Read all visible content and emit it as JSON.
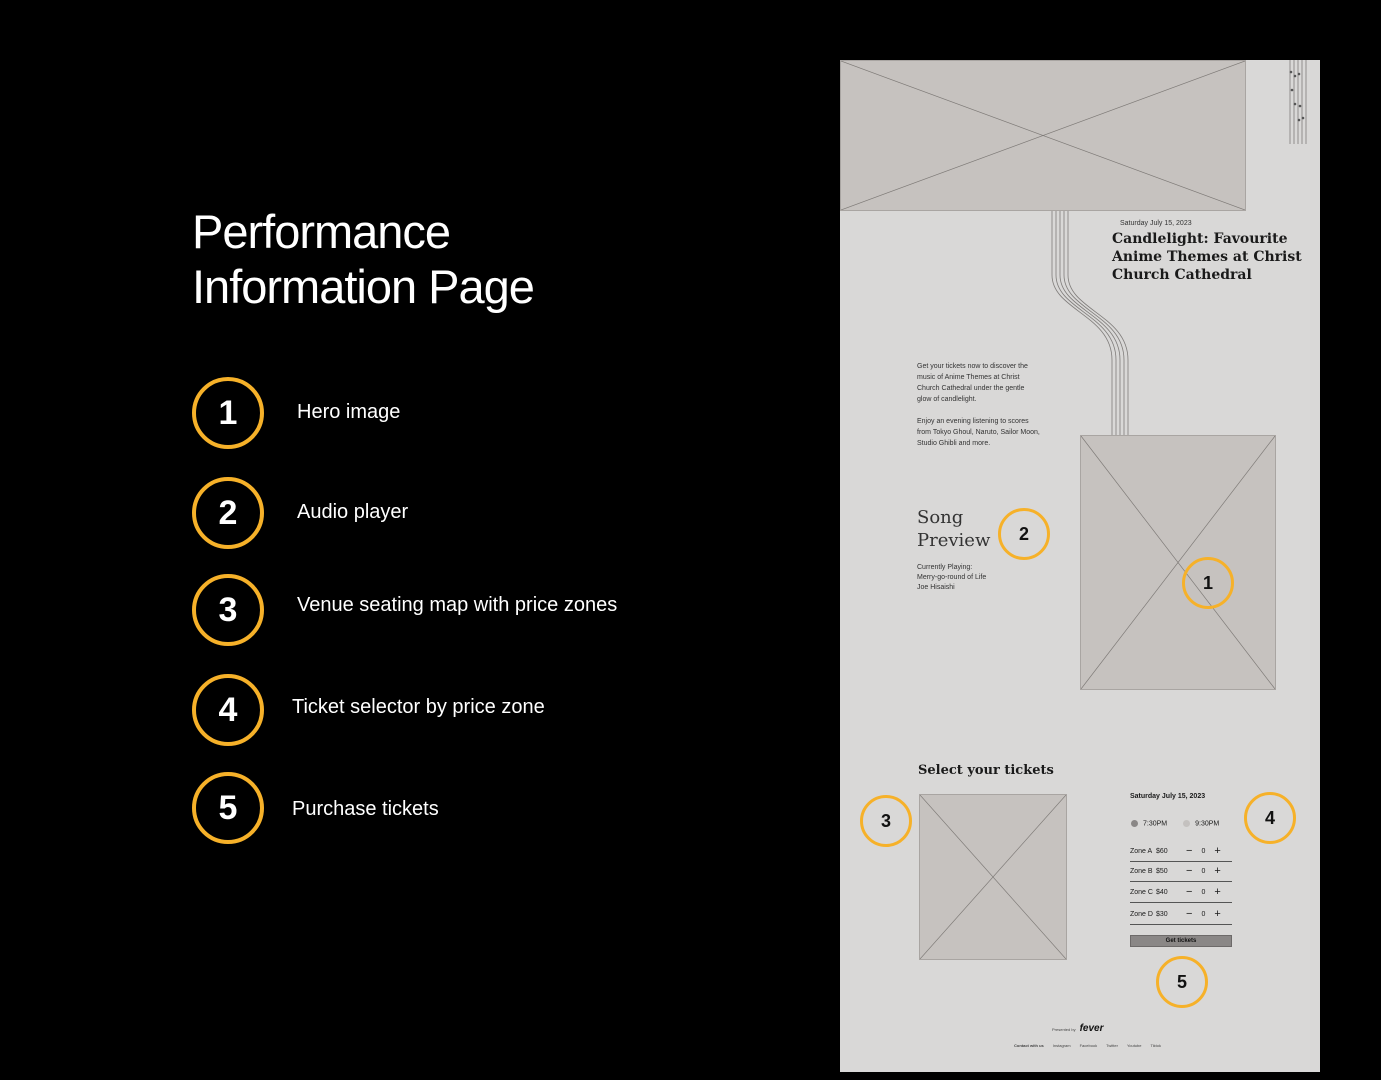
{
  "page": {
    "title_line1": "Performance",
    "title_line2": "Information Page"
  },
  "legend": [
    {
      "num": "1",
      "label": "Hero image"
    },
    {
      "num": "2",
      "label": "Audio player"
    },
    {
      "num": "3",
      "label": "Venue seating map with price zones"
    },
    {
      "num": "4",
      "label": "Ticket selector by price zone"
    },
    {
      "num": "5",
      "label": "Purchase tickets"
    }
  ],
  "colors": {
    "accent": "#f6b129",
    "background": "#000000",
    "wireframe_bg": "#d9d8d7",
    "placeholder": "#c6c2bf"
  },
  "event": {
    "date": "Saturday July 15, 2023",
    "title_line1": "Candlelight: Favourite",
    "title_line2": "Anime Themes at Christ",
    "title_line3": "Church Cathedral",
    "desc1_line1": "Get your tickets now to discover the",
    "desc1_line2": "music of Anime Themes at Christ",
    "desc1_line3": "Church Cathedral under the gentle",
    "desc1_line4": "glow of candlelight.",
    "desc2_line1": "Enjoy an evening listening to scores",
    "desc2_line2": "from Tokyo Ghoul, Naruto, Sailor Moon,",
    "desc2_line3": "Studio Ghibli and more."
  },
  "player": {
    "heading_line1": "Song",
    "heading_line2": "Preview",
    "now_label": "Currently Playing:",
    "track": "Merry-go-round of Life",
    "artist": "Joe Hisaishi"
  },
  "tickets": {
    "heading": "Select your tickets",
    "date": "Saturday July 15, 2023",
    "times": [
      {
        "label": "7:30PM",
        "selected": true
      },
      {
        "label": "9:30PM",
        "selected": false
      }
    ],
    "zones": [
      {
        "zone": "Zone A",
        "price": "$60",
        "qty": "0"
      },
      {
        "zone": "Zone B",
        "price": "$50",
        "qty": "0"
      },
      {
        "zone": "Zone C",
        "price": "$40",
        "qty": "0"
      },
      {
        "zone": "Zone D",
        "price": "$30",
        "qty": "0"
      }
    ],
    "minus": "−",
    "plus": "+",
    "cta": "Get tickets"
  },
  "footer": {
    "presented_by": "Presented by",
    "brand": "fever",
    "links": [
      "Contact with us",
      "Instagram",
      "Facebook",
      "Twitter",
      "Youtube",
      "Tiktok"
    ]
  },
  "markers": [
    "1",
    "2",
    "3",
    "4",
    "5"
  ]
}
